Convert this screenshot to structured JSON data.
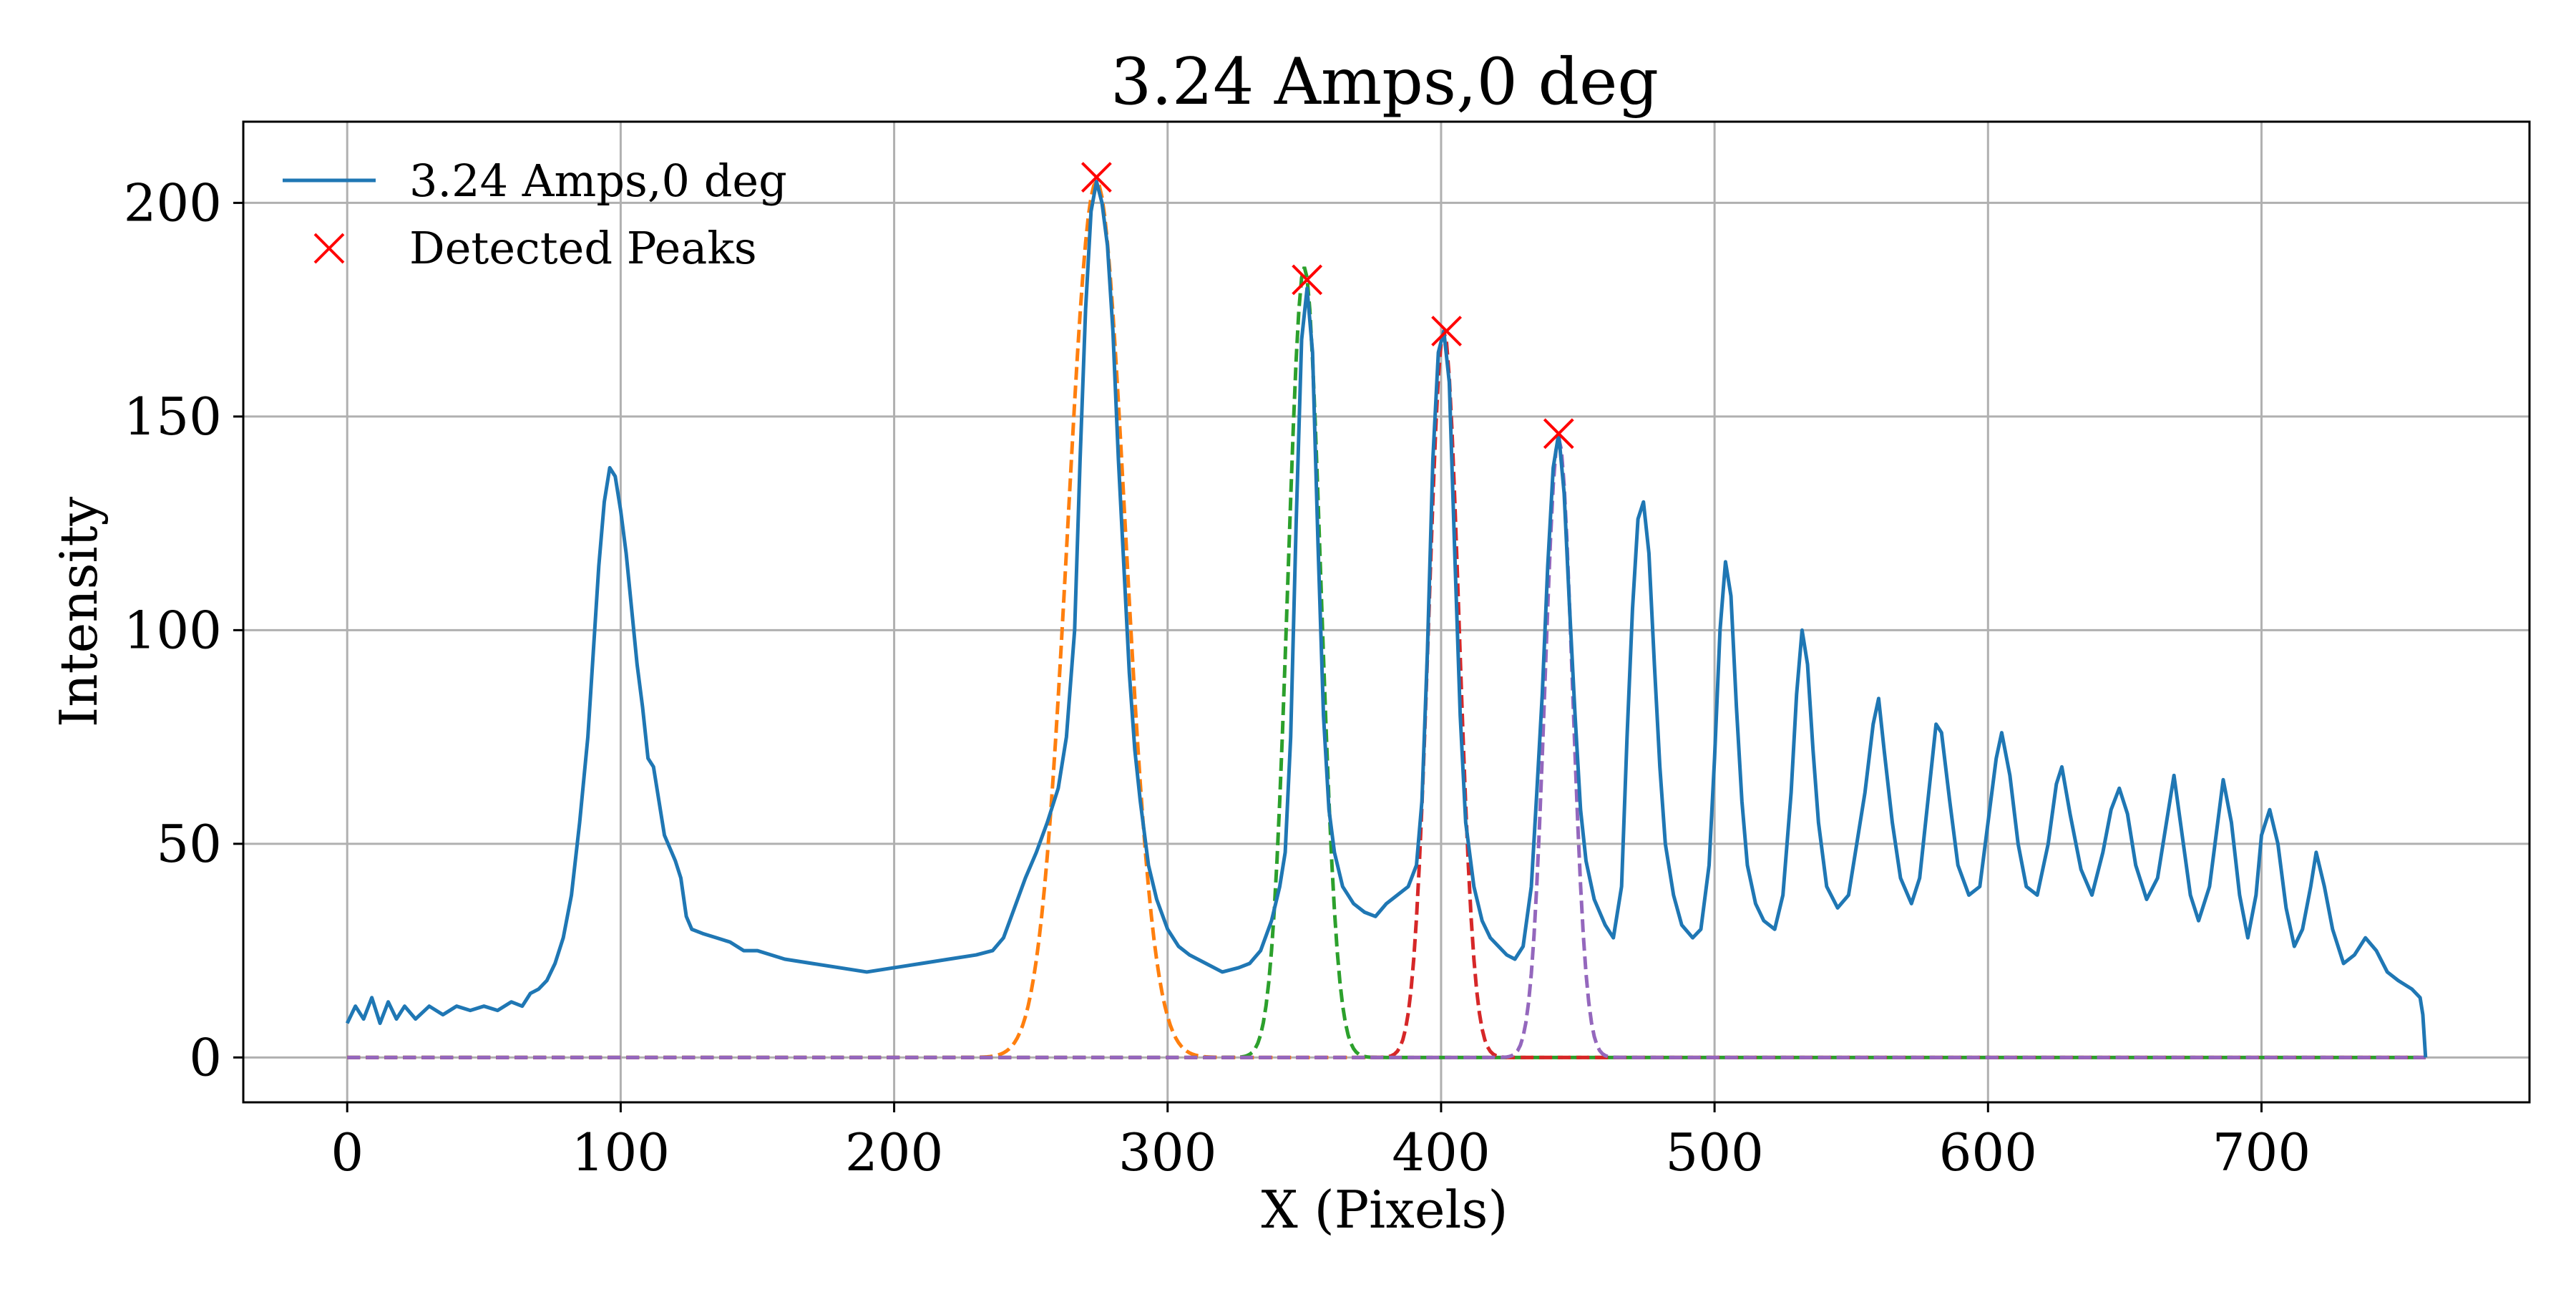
{
  "chart_data": {
    "type": "line",
    "title": "3.24 Amps,0 deg",
    "xlabel": "X (Pixels)",
    "ylabel": "Intensity",
    "xlim": [
      -38,
      798
    ],
    "ylim": [
      -10.5,
      219
    ],
    "xticks": [
      0,
      100,
      200,
      300,
      400,
      500,
      600,
      700
    ],
    "yticks": [
      0,
      50,
      100,
      150,
      200
    ],
    "xtick_labels": [
      "0",
      "100",
      "200",
      "300",
      "400",
      "500",
      "600",
      "700"
    ],
    "ytick_labels": [
      "0",
      "50",
      "100",
      "150",
      "200"
    ],
    "grid": true,
    "legend_position": "top-left",
    "legend": [
      {
        "label": "3.24 Amps,0 deg",
        "marker": "line",
        "color": "#1f77b4"
      },
      {
        "label": "Detected Peaks",
        "marker": "x",
        "color": "#ff0000"
      }
    ],
    "series": [
      {
        "name": "3.24 Amps,0 deg",
        "color": "#1f77b4",
        "points": [
          [
            0,
            8
          ],
          [
            3,
            12
          ],
          [
            6,
            9
          ],
          [
            9,
            14
          ],
          [
            12,
            8
          ],
          [
            15,
            13
          ],
          [
            18,
            9
          ],
          [
            21,
            12
          ],
          [
            25,
            9
          ],
          [
            30,
            12
          ],
          [
            35,
            10
          ],
          [
            40,
            12
          ],
          [
            45,
            11
          ],
          [
            50,
            12
          ],
          [
            55,
            11
          ],
          [
            60,
            13
          ],
          [
            64,
            12
          ],
          [
            67,
            15
          ],
          [
            70,
            16
          ],
          [
            73,
            18
          ],
          [
            76,
            22
          ],
          [
            79,
            28
          ],
          [
            82,
            38
          ],
          [
            85,
            55
          ],
          [
            88,
            75
          ],
          [
            90,
            95
          ],
          [
            92,
            115
          ],
          [
            94,
            130
          ],
          [
            96,
            138
          ],
          [
            98,
            136
          ],
          [
            100,
            128
          ],
          [
            102,
            118
          ],
          [
            104,
            105
          ],
          [
            106,
            92
          ],
          [
            108,
            82
          ],
          [
            110,
            70
          ],
          [
            112,
            68
          ],
          [
            114,
            60
          ],
          [
            116,
            52
          ],
          [
            118,
            49
          ],
          [
            120,
            46
          ],
          [
            122,
            42
          ],
          [
            124,
            33
          ],
          [
            126,
            30
          ],
          [
            130,
            29
          ],
          [
            135,
            28
          ],
          [
            140,
            27
          ],
          [
            145,
            25
          ],
          [
            150,
            25
          ],
          [
            160,
            23
          ],
          [
            170,
            22
          ],
          [
            180,
            21
          ],
          [
            190,
            20
          ],
          [
            200,
            21
          ],
          [
            210,
            22
          ],
          [
            220,
            23
          ],
          [
            230,
            24
          ],
          [
            236,
            25
          ],
          [
            240,
            28
          ],
          [
            244,
            35
          ],
          [
            248,
            42
          ],
          [
            252,
            48
          ],
          [
            256,
            55
          ],
          [
            260,
            63
          ],
          [
            263,
            75
          ],
          [
            266,
            100
          ],
          [
            268,
            140
          ],
          [
            270,
            175
          ],
          [
            272,
            198
          ],
          [
            274,
            205
          ],
          [
            276,
            200
          ],
          [
            278,
            190
          ],
          [
            280,
            170
          ],
          [
            282,
            140
          ],
          [
            284,
            115
          ],
          [
            286,
            90
          ],
          [
            288,
            72
          ],
          [
            290,
            60
          ],
          [
            293,
            45
          ],
          [
            296,
            37
          ],
          [
            300,
            30
          ],
          [
            304,
            26
          ],
          [
            308,
            24
          ],
          [
            314,
            22
          ],
          [
            320,
            20
          ],
          [
            326,
            21
          ],
          [
            330,
            22
          ],
          [
            334,
            25
          ],
          [
            338,
            32
          ],
          [
            341,
            40
          ],
          [
            343,
            48
          ],
          [
            345,
            75
          ],
          [
            347,
            125
          ],
          [
            349,
            168
          ],
          [
            351,
            180
          ],
          [
            353,
            165
          ],
          [
            355,
            120
          ],
          [
            357,
            80
          ],
          [
            359,
            58
          ],
          [
            361,
            48
          ],
          [
            364,
            40
          ],
          [
            368,
            36
          ],
          [
            372,
            34
          ],
          [
            376,
            33
          ],
          [
            380,
            36
          ],
          [
            384,
            38
          ],
          [
            388,
            40
          ],
          [
            391,
            45
          ],
          [
            393,
            60
          ],
          [
            395,
            95
          ],
          [
            397,
            140
          ],
          [
            399,
            165
          ],
          [
            401,
            170
          ],
          [
            403,
            158
          ],
          [
            405,
            118
          ],
          [
            407,
            80
          ],
          [
            409,
            55
          ],
          [
            412,
            40
          ],
          [
            415,
            32
          ],
          [
            418,
            28
          ],
          [
            421,
            26
          ],
          [
            424,
            24
          ],
          [
            427,
            23
          ],
          [
            430,
            26
          ],
          [
            433,
            40
          ],
          [
            435,
            62
          ],
          [
            437,
            85
          ],
          [
            439,
            115
          ],
          [
            441,
            138
          ],
          [
            443,
            146
          ],
          [
            445,
            132
          ],
          [
            447,
            105
          ],
          [
            449,
            80
          ],
          [
            451,
            58
          ],
          [
            453,
            46
          ],
          [
            456,
            37
          ],
          [
            460,
            31
          ],
          [
            463,
            28
          ],
          [
            466,
            40
          ],
          [
            468,
            75
          ],
          [
            470,
            105
          ],
          [
            472,
            126
          ],
          [
            474,
            130
          ],
          [
            476,
            118
          ],
          [
            478,
            92
          ],
          [
            480,
            68
          ],
          [
            482,
            50
          ],
          [
            485,
            38
          ],
          [
            488,
            31
          ],
          [
            492,
            28
          ],
          [
            495,
            30
          ],
          [
            498,
            45
          ],
          [
            500,
            70
          ],
          [
            502,
            100
          ],
          [
            504,
            116
          ],
          [
            506,
            108
          ],
          [
            508,
            82
          ],
          [
            510,
            60
          ],
          [
            512,
            45
          ],
          [
            515,
            36
          ],
          [
            518,
            32
          ],
          [
            522,
            30
          ],
          [
            525,
            38
          ],
          [
            528,
            62
          ],
          [
            530,
            85
          ],
          [
            532,
            100
          ],
          [
            534,
            92
          ],
          [
            536,
            72
          ],
          [
            538,
            55
          ],
          [
            541,
            40
          ],
          [
            545,
            35
          ],
          [
            549,
            38
          ],
          [
            552,
            50
          ],
          [
            555,
            62
          ],
          [
            558,
            78
          ],
          [
            560,
            84
          ],
          [
            562,
            72
          ],
          [
            565,
            55
          ],
          [
            568,
            42
          ],
          [
            572,
            36
          ],
          [
            575,
            42
          ],
          [
            578,
            60
          ],
          [
            581,
            78
          ],
          [
            583,
            76
          ],
          [
            586,
            60
          ],
          [
            589,
            45
          ],
          [
            593,
            38
          ],
          [
            597,
            40
          ],
          [
            600,
            55
          ],
          [
            603,
            70
          ],
          [
            605,
            76
          ],
          [
            608,
            66
          ],
          [
            611,
            50
          ],
          [
            614,
            40
          ],
          [
            618,
            38
          ],
          [
            622,
            50
          ],
          [
            625,
            64
          ],
          [
            627,
            68
          ],
          [
            630,
            57
          ],
          [
            634,
            44
          ],
          [
            638,
            38
          ],
          [
            642,
            48
          ],
          [
            645,
            58
          ],
          [
            648,
            63
          ],
          [
            651,
            57
          ],
          [
            654,
            45
          ],
          [
            658,
            37
          ],
          [
            662,
            42
          ],
          [
            666,
            58
          ],
          [
            668,
            66
          ],
          [
            671,
            52
          ],
          [
            674,
            38
          ],
          [
            677,
            32
          ],
          [
            681,
            40
          ],
          [
            684,
            55
          ],
          [
            686,
            65
          ],
          [
            689,
            55
          ],
          [
            692,
            38
          ],
          [
            695,
            28
          ],
          [
            698,
            38
          ],
          [
            700,
            52
          ],
          [
            703,
            58
          ],
          [
            706,
            50
          ],
          [
            709,
            35
          ],
          [
            712,
            26
          ],
          [
            715,
            30
          ],
          [
            718,
            40
          ],
          [
            720,
            48
          ],
          [
            723,
            40
          ],
          [
            726,
            30
          ],
          [
            730,
            22
          ],
          [
            734,
            24
          ],
          [
            738,
            28
          ],
          [
            742,
            25
          ],
          [
            746,
            20
          ],
          [
            750,
            18
          ],
          [
            755,
            16
          ],
          [
            758,
            14
          ],
          [
            759,
            10
          ],
          [
            760,
            0
          ]
        ]
      },
      {
        "name": "",
        "type": "gaussian",
        "style": "dashed",
        "color": "#ff7f0e",
        "amplitude": 205,
        "center": 274,
        "sigma": 10.5
      },
      {
        "name": "",
        "type": "gaussian",
        "style": "dashed",
        "color": "#2ca02c",
        "amplitude": 185,
        "center": 350,
        "sigma": 6.0
      },
      {
        "name": "",
        "type": "gaussian",
        "style": "dashed",
        "color": "#d62728",
        "amplitude": 170,
        "center": 401,
        "sigma": 5.5
      },
      {
        "name": "",
        "type": "gaussian",
        "style": "dashed",
        "color": "#9467bd",
        "amplitude": 145,
        "center": 443,
        "sigma": 5.0
      }
    ],
    "peaks": {
      "name": "Detected Peaks",
      "color": "#ff0000",
      "points": [
        [
          274,
          206
        ],
        [
          351,
          182
        ],
        [
          402,
          170
        ],
        [
          443,
          146
        ]
      ]
    }
  }
}
